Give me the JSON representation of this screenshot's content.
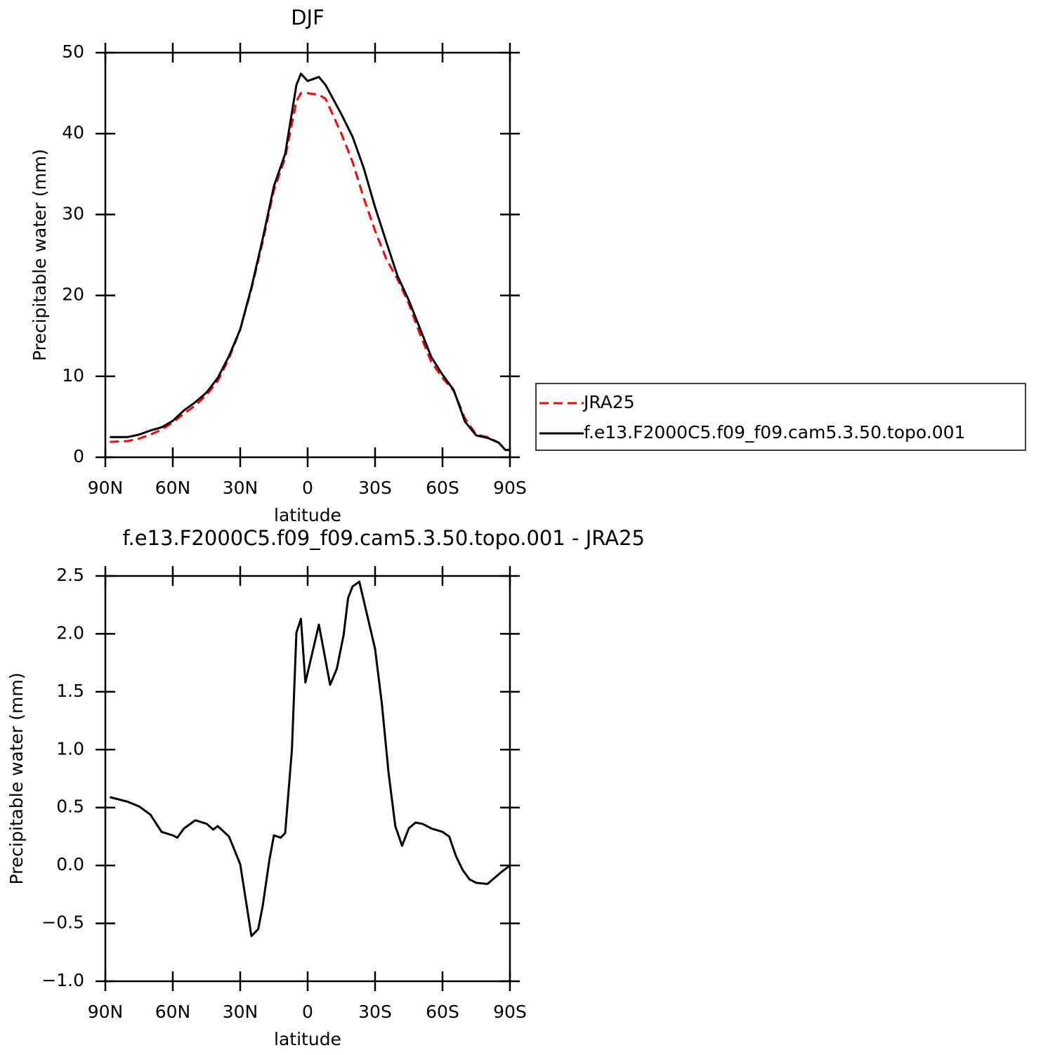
{
  "chart_data": [
    {
      "type": "line",
      "title": "DJF",
      "xlabel": "latitude",
      "ylabel": "Precipitable water (mm)",
      "x": [
        88,
        80,
        75,
        70,
        65,
        60,
        55,
        50,
        45,
        40,
        35,
        30,
        25,
        20,
        15,
        10,
        5,
        3,
        0,
        -5,
        -8,
        -15,
        -20,
        -25,
        -30,
        -35,
        -40,
        -45,
        -50,
        -55,
        -60,
        -65,
        -70,
        -75,
        -80,
        -85,
        -88,
        -90
      ],
      "xlim": [
        90,
        -90
      ],
      "xticks": [
        {
          "value": 90,
          "label": "90N"
        },
        {
          "value": 60,
          "label": "60N"
        },
        {
          "value": 30,
          "label": "30N"
        },
        0,
        {
          "value": -30,
          "label": "30S"
        },
        {
          "value": -60,
          "label": "60S"
        },
        {
          "value": -90,
          "label": "90S"
        }
      ],
      "ylim": [
        0,
        50
      ],
      "yticks": [
        0,
        10,
        20,
        30,
        40,
        50
      ],
      "legend": "right",
      "series": [
        {
          "name": "JRA25",
          "color": "#ff0000",
          "dash": true,
          "values": [
            1.9,
            2.0,
            2.3,
            2.8,
            3.4,
            4.3,
            5.4,
            6.4,
            7.7,
            9.4,
            12.2,
            15.8,
            20.8,
            26.6,
            33,
            37,
            44,
            45,
            45,
            44.8,
            44.3,
            40,
            36.5,
            32,
            28,
            24.5,
            22,
            19,
            15.2,
            11.8,
            9.8,
            8.2,
            4.8,
            2.8,
            2.5,
            1.8,
            0.9,
            0.9
          ]
        },
        {
          "name": "f.e13.F2000C5.f09_f09.cam5.3.50.topo.001",
          "color": "#000000",
          "dash": false,
          "values": [
            2.5,
            2.5,
            2.8,
            3.3,
            3.7,
            4.5,
            5.8,
            6.8,
            8.0,
            9.8,
            12.5,
            15.8,
            21.0,
            27.0,
            33.5,
            37.5,
            46,
            47.4,
            46.5,
            47,
            46,
            42.4,
            39.6,
            35.7,
            30.9,
            26.6,
            22.4,
            19.4,
            15.9,
            12.4,
            10.2,
            8.3,
            4.4,
            2.7,
            2.4,
            1.8,
            0.9,
            0.9
          ]
        }
      ]
    },
    {
      "type": "line",
      "title": "f.e13.F2000C5.f09_f09.cam5.3.50.topo.001 - JRA25",
      "xlabel": "latitude",
      "ylabel": "Precipitable water (mm)",
      "x": [
        88,
        80,
        75,
        70,
        65,
        60,
        58,
        55,
        50,
        45,
        42,
        40,
        35,
        30,
        25,
        22,
        20,
        17,
        15,
        12,
        10,
        7,
        5,
        3,
        1,
        -5,
        -10,
        -13,
        -16,
        -18,
        -20,
        -23,
        -30,
        -33,
        -36,
        -39,
        -42,
        -45,
        -48,
        -51,
        -55,
        -60,
        -63,
        -66,
        -69,
        -72,
        -75,
        -80,
        -83,
        -86,
        -90
      ],
      "xlim": [
        90,
        -90
      ],
      "xticks": [
        {
          "value": 90,
          "label": "90N"
        },
        {
          "value": 60,
          "label": "60N"
        },
        {
          "value": 30,
          "label": "30N"
        },
        0,
        {
          "value": -30,
          "label": "30S"
        },
        {
          "value": -60,
          "label": "60S"
        },
        {
          "value": -90,
          "label": "90S"
        }
      ],
      "ylim": [
        -1.0,
        2.5
      ],
      "yticks": [
        {
          "value": -1.0,
          "label": "−1.0"
        },
        {
          "value": -0.5,
          "label": "−0.5"
        },
        {
          "value": 0,
          "label": "0.0"
        },
        0.5,
        {
          "value": 1.0,
          "label": "1.0"
        },
        1.5,
        {
          "value": 2.0,
          "label": "2.0"
        },
        2.5
      ],
      "series": [
        {
          "color": "#000000",
          "values": [
            0.59,
            0.55,
            0.51,
            0.44,
            0.29,
            0.26,
            0.24,
            0.32,
            0.39,
            0.36,
            0.31,
            0.34,
            0.25,
            0.01,
            -0.61,
            -0.55,
            -0.35,
            0.05,
            0.26,
            0.24,
            0.28,
            1.0,
            2.01,
            2.13,
            1.58,
            2.08,
            1.56,
            1.7,
            1.99,
            2.31,
            2.41,
            2.45,
            1.87,
            1.4,
            0.8,
            0.34,
            0.17,
            0.32,
            0.37,
            0.36,
            0.32,
            0.29,
            0.25,
            0.08,
            -0.04,
            -0.12,
            -0.15,
            -0.16,
            -0.11,
            -0.06,
            0.0
          ]
        }
      ]
    }
  ]
}
